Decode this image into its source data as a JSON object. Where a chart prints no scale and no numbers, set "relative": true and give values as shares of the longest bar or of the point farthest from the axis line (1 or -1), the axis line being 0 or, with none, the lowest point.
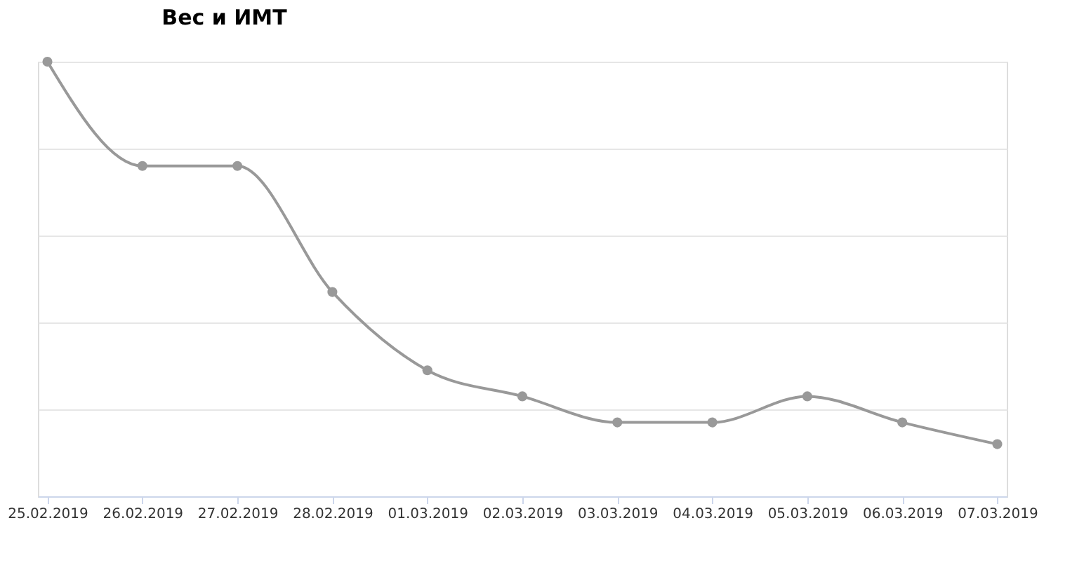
{
  "chart_data": {
    "type": "line",
    "title": "Вес и ИМТ",
    "relative": true,
    "categories": [
      "25.02.2019",
      "26.02.2019",
      "27.02.2019",
      "28.02.2019",
      "01.03.2019",
      "02.03.2019",
      "03.03.2019",
      "04.03.2019",
      "05.03.2019",
      "06.03.2019",
      "07.03.2019"
    ],
    "series": [
      {
        "color": "#999999",
        "values": [
          1,
          0.76,
          0.76,
          0.47,
          0.29,
          0.23,
          0.17,
          0.17,
          0.23,
          0.17,
          0.12
        ]
      }
    ],
    "grid": "y",
    "marker": "circle",
    "line_style": "solid"
  }
}
